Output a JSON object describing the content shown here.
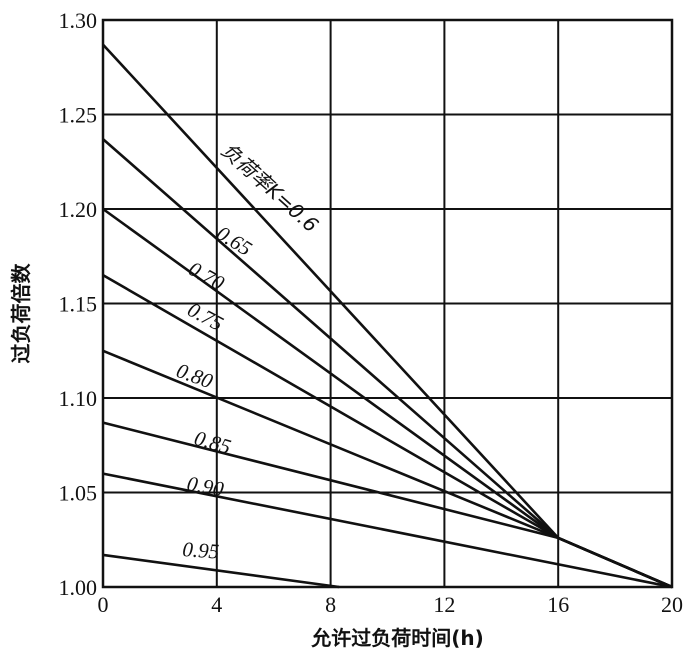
{
  "chart_data": {
    "type": "line",
    "xlabel": "允许过负荷时间(h)",
    "ylabel": "过负荷倍数",
    "xlim": [
      0,
      20
    ],
    "ylim": [
      1.0,
      1.3
    ],
    "x_ticks": [
      "0",
      "4",
      "8",
      "12",
      "16",
      "20"
    ],
    "y_ticks": [
      "1.00",
      "1.05",
      "1.10",
      "1.15",
      "1.20",
      "1.25",
      "1.30"
    ],
    "grid": true,
    "series": [
      {
        "name": "负荷率K=0.6",
        "points": [
          [
            0,
            1.287
          ],
          [
            16,
            1.026
          ],
          [
            20,
            1.0
          ]
        ]
      },
      {
        "name": "0.65",
        "points": [
          [
            0,
            1.237
          ],
          [
            16,
            1.026
          ],
          [
            20,
            1.0
          ]
        ]
      },
      {
        "name": "0.70",
        "points": [
          [
            0,
            1.2
          ],
          [
            16,
            1.026
          ],
          [
            20,
            1.0
          ]
        ]
      },
      {
        "name": "0.75",
        "points": [
          [
            0,
            1.165
          ],
          [
            16,
            1.026
          ],
          [
            20,
            1.0
          ]
        ]
      },
      {
        "name": "0.80",
        "points": [
          [
            0,
            1.125
          ],
          [
            16,
            1.026
          ],
          [
            20,
            1.0
          ]
        ]
      },
      {
        "name": "0.85",
        "points": [
          [
            0,
            1.087
          ],
          [
            16,
            1.026
          ],
          [
            20,
            1.0
          ]
        ]
      },
      {
        "name": "0.90",
        "points": [
          [
            0,
            1.06
          ],
          [
            20,
            1.0
          ]
        ]
      },
      {
        "name": "0.95",
        "points": [
          [
            0,
            1.017
          ],
          [
            8.3,
            1.0
          ]
        ]
      }
    ]
  }
}
